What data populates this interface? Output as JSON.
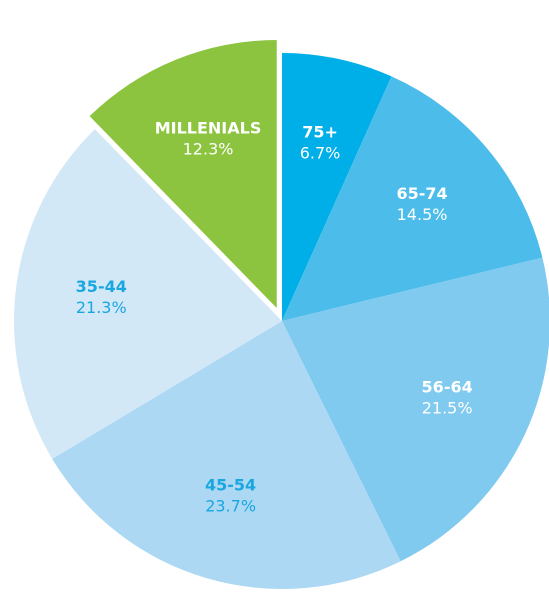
{
  "chart_data": {
    "type": "pie",
    "categories": [
      "75+",
      "65-74",
      "56-64",
      "45-54",
      "35-44",
      "MILLENIALS"
    ],
    "values": [
      6.7,
      14.5,
      21.5,
      23.7,
      21.3,
      12.3
    ],
    "value_labels": [
      "6.7%",
      "14.5%",
      "21.5%",
      "23.7%",
      "21.3%",
      "12.3%"
    ],
    "colors": [
      "#00aee8",
      "#4cbdea",
      "#80c9ef",
      "#acd8f4",
      "#d3e8f7",
      "#8cc43f"
    ],
    "label_colors": [
      "#ffffff",
      "#ffffff",
      "#ffffff",
      "#1aa7e0",
      "#1aa7e0",
      "#ffffff"
    ],
    "exploded": [
      false,
      false,
      false,
      false,
      false,
      true
    ]
  }
}
